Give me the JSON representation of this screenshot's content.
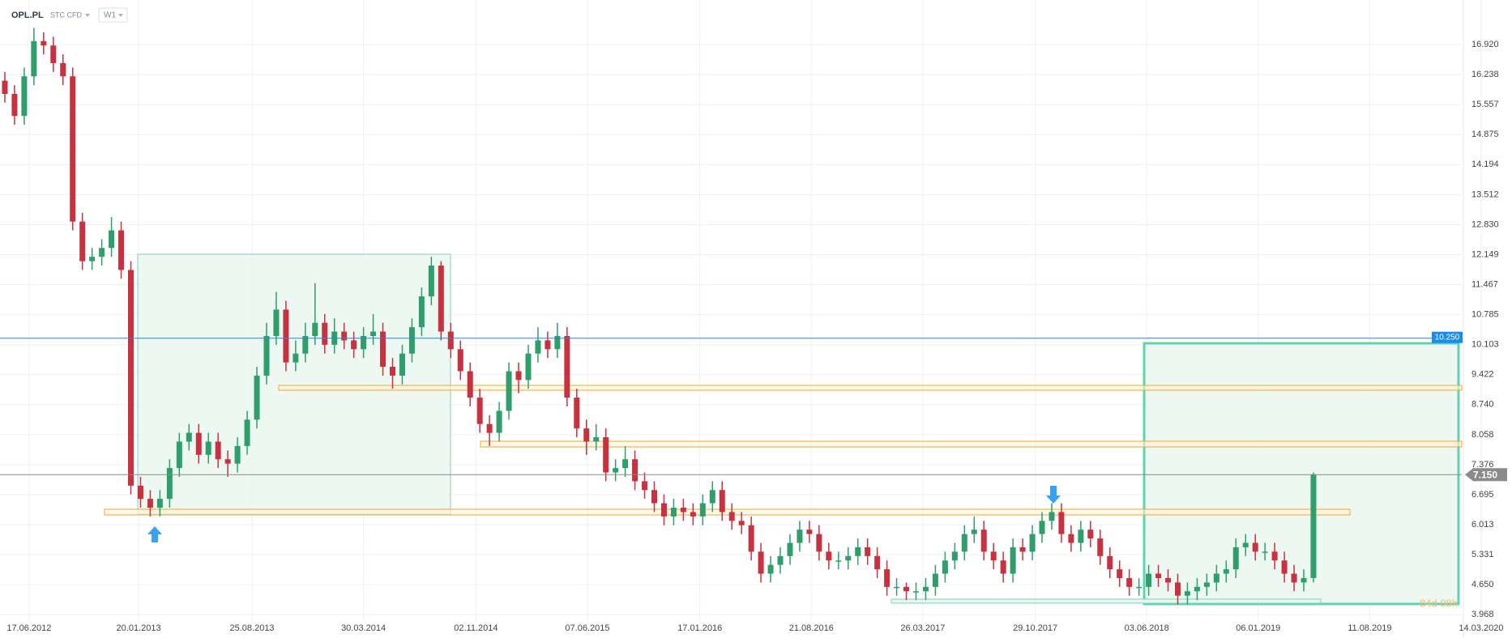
{
  "chart_data": {
    "type": "candlestick",
    "symbol": "OPL.PL",
    "instrument_type": "STC CFD",
    "interval": "W1",
    "countdown": "84d 08h",
    "up_color": "#2e9e6b",
    "down_color": "#c8313f",
    "grid": true,
    "xlim": [
      -0.5,
      150.3
    ],
    "xticks": [
      {
        "value": 2.5,
        "label": "17.06.2012"
      },
      {
        "value": 13.8,
        "label": "20.01.2013"
      },
      {
        "value": 25.5,
        "label": "25.08.2013"
      },
      {
        "value": 37,
        "label": "30.03.2014"
      },
      {
        "value": 48.6,
        "label": "02.11.2014"
      },
      {
        "value": 60.1,
        "label": "07.06.2015"
      },
      {
        "value": 71.7,
        "label": "17.01.2016"
      },
      {
        "value": 83.2,
        "label": "21.08.2016"
      },
      {
        "value": 94.7,
        "label": "26.03.2017"
      },
      {
        "value": 106.3,
        "label": "29.10.2017"
      },
      {
        "value": 117.8,
        "label": "03.06.2018"
      },
      {
        "value": 129.3,
        "label": "06.01.2019"
      },
      {
        "value": 140.8,
        "label": "11.08.2019"
      },
      {
        "value": 152.3,
        "label": "14.03.2020"
      }
    ],
    "ylim": [
      3.88,
      17.75
    ],
    "yticks": [
      {
        "value": 16.92,
        "label": "16.920"
      },
      16.238,
      15.557,
      14.875,
      14.194,
      13.512,
      {
        "value": 12.83,
        "label": "12.830"
      },
      12.149,
      11.467,
      10.785,
      10.103,
      9.422,
      {
        "value": 8.74,
        "label": "8.740"
      },
      8.058,
      7.376,
      6.695,
      6.013,
      5.331,
      {
        "value": 4.65,
        "label": "4.650"
      },
      3.968
    ],
    "hlines": [
      {
        "value": 10.25,
        "label": "10.250",
        "color": "#1a8be8"
      },
      {
        "value": 7.15,
        "label": "7.150",
        "color": "#8a8a8a"
      }
    ],
    "open": [
      16.1,
      15.8,
      15.3,
      16.2,
      17.0,
      16.9,
      16.5,
      16.2,
      12.9,
      12.0,
      12.1,
      12.3,
      12.7,
      11.8,
      6.9,
      6.6,
      6.4,
      6.6,
      7.3,
      7.9,
      8.1,
      7.6,
      7.9,
      7.5,
      7.4,
      7.8,
      8.4,
      9.4,
      10.3,
      10.9,
      9.7,
      9.9,
      10.3,
      10.6,
      10.1,
      10.4,
      10.2,
      10.0,
      10.3,
      10.4,
      9.6,
      9.4,
      9.9,
      10.5,
      11.2,
      11.9,
      10.4,
      10.0,
      9.5,
      8.9,
      8.3,
      8.1,
      8.6,
      9.5,
      9.3,
      9.9,
      10.2,
      10.0,
      10.3,
      8.9,
      8.2,
      7.9,
      8.0,
      7.2,
      7.3,
      7.5,
      7.0,
      6.8,
      6.5,
      6.2,
      6.4,
      6.3,
      6.2,
      6.5,
      6.8,
      6.3,
      6.1,
      6.0,
      5.4,
      4.9,
      5.1,
      5.3,
      5.6,
      5.9,
      5.8,
      5.4,
      5.2,
      5.2,
      5.3,
      5.5,
      5.3,
      5.0,
      4.6,
      4.6,
      4.5,
      4.5,
      4.6,
      4.9,
      5.2,
      5.4,
      5.8,
      5.9,
      5.4,
      5.2,
      4.9,
      5.5,
      5.4,
      5.8,
      6.1,
      6.3,
      5.8,
      5.6,
      5.9,
      5.7,
      5.3,
      5.0,
      4.8,
      4.6,
      4.6,
      4.9,
      4.8,
      4.7,
      4.4,
      4.5,
      4.6,
      4.7,
      4.9,
      5.0,
      5.5,
      5.6,
      5.4,
      5.4,
      5.2,
      4.9,
      4.7,
      4.8
    ],
    "high": [
      16.3,
      16.0,
      16.4,
      17.3,
      17.2,
      17.1,
      16.7,
      16.4,
      13.1,
      12.3,
      12.5,
      13.0,
      12.9,
      12.0,
      7.1,
      6.8,
      6.8,
      7.5,
      8.1,
      8.3,
      8.3,
      8.1,
      8.1,
      7.7,
      8.0,
      8.6,
      9.6,
      10.6,
      11.3,
      11.1,
      10.2,
      10.6,
      11.5,
      10.8,
      10.7,
      10.6,
      10.4,
      10.5,
      10.8,
      10.6,
      9.8,
      10.1,
      10.7,
      11.4,
      12.1,
      12.0,
      10.6,
      10.2,
      9.7,
      9.1,
      8.5,
      8.8,
      9.7,
      9.7,
      10.1,
      10.5,
      10.4,
      10.6,
      10.5,
      9.1,
      8.4,
      8.3,
      8.2,
      7.5,
      7.8,
      7.7,
      7.2,
      7.0,
      6.7,
      6.6,
      6.6,
      6.5,
      6.7,
      7.0,
      7.0,
      6.5,
      6.3,
      6.2,
      5.6,
      5.3,
      5.5,
      5.8,
      6.1,
      6.1,
      6.0,
      5.6,
      5.4,
      5.5,
      5.7,
      5.7,
      5.5,
      5.2,
      4.8,
      4.7,
      4.7,
      4.8,
      5.1,
      5.4,
      5.6,
      6.0,
      6.2,
      6.1,
      5.6,
      5.4,
      5.7,
      5.7,
      6.0,
      6.3,
      6.5,
      6.5,
      6.0,
      6.1,
      6.1,
      5.9,
      5.5,
      5.2,
      5.0,
      4.8,
      5.1,
      5.1,
      5.0,
      4.9,
      4.7,
      4.8,
      4.9,
      5.1,
      5.2,
      5.7,
      5.8,
      5.8,
      5.6,
      5.6,
      5.4,
      5.1,
      5.0,
      7.2
    ],
    "low": [
      15.6,
      15.1,
      15.1,
      16.0,
      16.7,
      16.3,
      16.0,
      12.7,
      11.8,
      11.8,
      11.9,
      12.1,
      11.6,
      6.7,
      6.4,
      6.2,
      6.2,
      6.4,
      7.1,
      7.7,
      7.4,
      7.4,
      7.3,
      7.1,
      7.2,
      7.6,
      8.2,
      9.2,
      10.1,
      9.5,
      9.5,
      9.7,
      10.1,
      9.9,
      9.9,
      10.0,
      9.8,
      9.8,
      10.1,
      9.4,
      9.1,
      9.2,
      9.7,
      10.3,
      11.0,
      10.2,
      9.8,
      9.3,
      8.7,
      8.1,
      7.8,
      7.9,
      8.4,
      9.0,
      9.1,
      9.7,
      9.8,
      9.8,
      8.7,
      8.0,
      7.6,
      7.7,
      7.0,
      7.0,
      7.1,
      6.8,
      6.6,
      6.3,
      6.0,
      6.0,
      6.1,
      6.0,
      6.0,
      6.3,
      6.1,
      5.9,
      5.8,
      5.2,
      4.7,
      4.7,
      4.9,
      5.1,
      5.4,
      5.6,
      5.2,
      5.0,
      5.0,
      5.0,
      5.1,
      5.1,
      4.8,
      4.4,
      4.4,
      4.3,
      4.3,
      4.3,
      4.4,
      4.7,
      5.0,
      5.2,
      5.6,
      5.2,
      5.0,
      4.7,
      4.7,
      5.2,
      5.2,
      5.6,
      5.9,
      5.6,
      5.4,
      5.4,
      5.5,
      5.1,
      4.8,
      4.6,
      4.4,
      4.4,
      4.4,
      4.6,
      4.5,
      4.2,
      4.2,
      4.3,
      4.4,
      4.5,
      4.7,
      4.8,
      5.3,
      5.2,
      5.2,
      5.0,
      4.7,
      4.5,
      4.5,
      4.7
    ],
    "close": [
      15.8,
      15.3,
      16.2,
      17.0,
      16.9,
      16.5,
      16.2,
      12.9,
      12.0,
      12.1,
      12.3,
      12.7,
      11.8,
      6.9,
      6.6,
      6.4,
      6.6,
      7.3,
      7.9,
      8.1,
      7.6,
      7.9,
      7.5,
      7.4,
      7.8,
      8.4,
      9.4,
      10.3,
      10.9,
      9.7,
      9.9,
      10.3,
      10.6,
      10.1,
      10.4,
      10.2,
      10.0,
      10.3,
      10.4,
      9.6,
      9.4,
      9.9,
      10.5,
      11.2,
      11.9,
      10.4,
      10.0,
      9.5,
      8.9,
      8.3,
      8.1,
      8.6,
      9.5,
      9.3,
      9.9,
      10.2,
      10.0,
      10.3,
      8.9,
      8.2,
      7.9,
      8.0,
      7.2,
      7.3,
      7.5,
      7.0,
      6.8,
      6.5,
      6.2,
      6.4,
      6.3,
      6.2,
      6.5,
      6.8,
      6.3,
      6.1,
      6.0,
      5.4,
      4.9,
      5.1,
      5.3,
      5.6,
      5.9,
      5.8,
      5.4,
      5.2,
      5.2,
      5.3,
      5.5,
      5.3,
      5.0,
      4.6,
      4.6,
      4.5,
      4.5,
      4.6,
      4.9,
      5.2,
      5.4,
      5.8,
      5.9,
      5.4,
      5.2,
      4.9,
      5.5,
      5.4,
      5.8,
      6.1,
      6.3,
      5.8,
      5.6,
      5.9,
      5.7,
      5.3,
      5.0,
      4.8,
      4.6,
      4.6,
      4.9,
      4.8,
      4.7,
      4.4,
      4.5,
      4.6,
      4.7,
      4.9,
      5.0,
      5.5,
      5.6,
      5.4,
      5.4,
      5.2,
      4.9,
      4.7,
      4.8,
      7.15
    ]
  }
}
